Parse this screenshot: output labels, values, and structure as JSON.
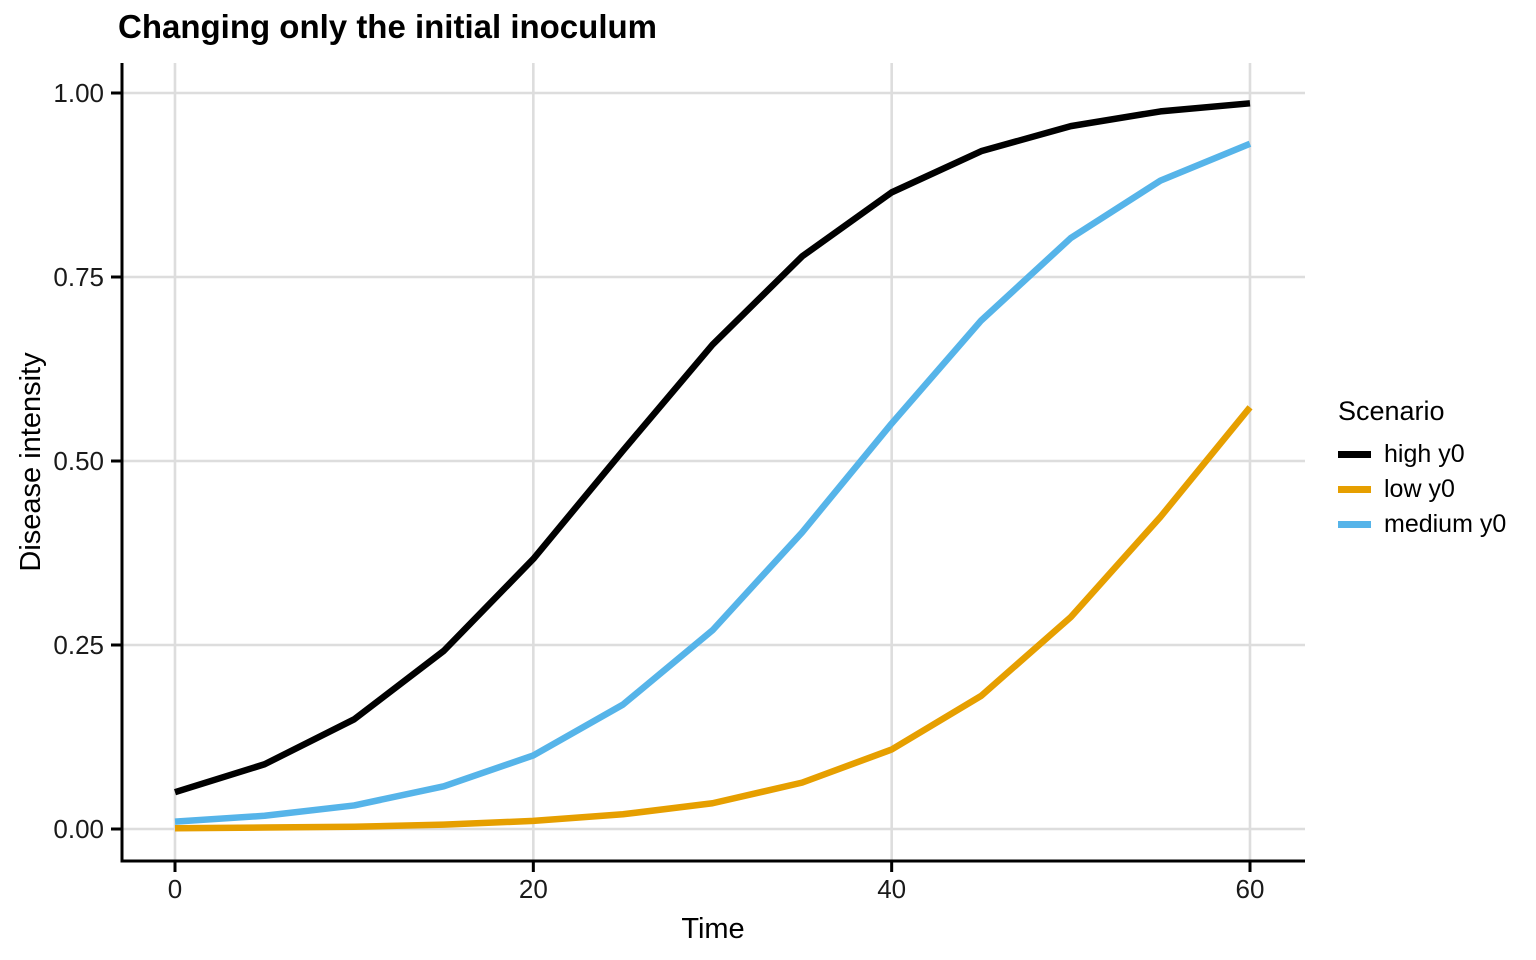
{
  "title": "Changing only the initial inoculum",
  "chart_data": {
    "type": "line",
    "title": "Changing only the initial inoculum",
    "xlabel": "Time",
    "ylabel": "Disease intensity",
    "xlim": [
      0,
      60
    ],
    "ylim": [
      0,
      1
    ],
    "x_ticks": [
      0,
      20,
      40,
      60
    ],
    "y_ticks": [
      0,
      0.25,
      0.5,
      0.75,
      1
    ],
    "y_tick_labels": [
      "0.00",
      "0.25",
      "0.50",
      "0.75",
      "1.00"
    ],
    "grid": "major gridlines only, light gray on white panel",
    "legend_position": "right",
    "x": [
      0,
      5,
      10,
      15,
      20,
      25,
      30,
      35,
      40,
      45,
      50,
      55,
      60
    ],
    "series": [
      {
        "name": "high y0",
        "color": "#000000",
        "values": [
          0.05,
          0.088,
          0.149,
          0.242,
          0.367,
          0.514,
          0.658,
          0.778,
          0.865,
          0.921,
          0.955,
          0.975,
          0.986
        ]
      },
      {
        "name": "low y0",
        "color": "#E69F00",
        "values": [
          0.001,
          0.002,
          0.003,
          0.006,
          0.011,
          0.02,
          0.035,
          0.063,
          0.108,
          0.181,
          0.288,
          0.424,
          0.573
        ]
      },
      {
        "name": "medium y0",
        "color": "#56B4E9",
        "values": [
          0.01,
          0.018,
          0.032,
          0.058,
          0.1,
          0.169,
          0.27,
          0.403,
          0.551,
          0.691,
          0.803,
          0.881,
          0.931
        ]
      }
    ]
  },
  "legend": {
    "title": "Scenario",
    "entries": [
      {
        "label": "high y0",
        "color": "#000000"
      },
      {
        "label": "low y0",
        "color": "#E69F00"
      },
      {
        "label": "medium y0",
        "color": "#56B4E9"
      }
    ]
  },
  "colors": {
    "background": "#FFFFFF",
    "grid": "#DDDDDD",
    "axis": "#000000",
    "tick_text": "#1A1A1A"
  }
}
